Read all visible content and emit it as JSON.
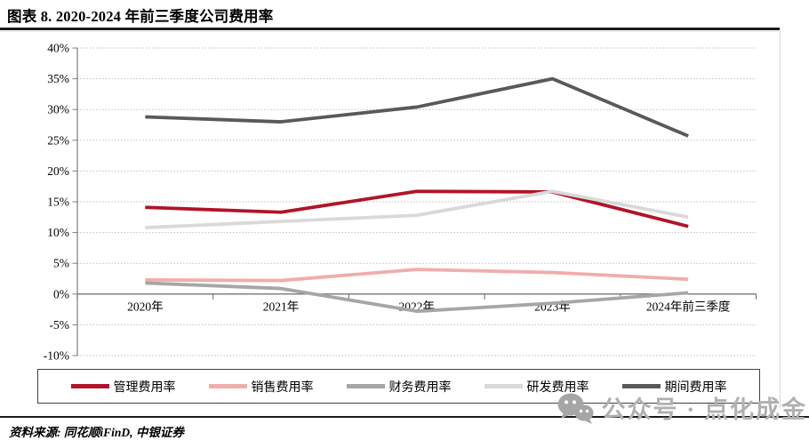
{
  "header": {
    "title": "图表 8. 2020-2024 年前三季度公司费用率"
  },
  "footer": {
    "source": "资料来源: 同花顺iFinD, 中银证券"
  },
  "watermark": {
    "text": "公众号 · 点化成金",
    "icon": "wechat-icon"
  },
  "colors": {
    "title_rule": "#1a1a1a",
    "grid_dotted": "#bfbfbf",
    "axis": "#808080",
    "zero_axis": "#595959",
    "tick": "#666666",
    "legend_border": "#404040",
    "watermark": "#b0b0b0",
    "cell_border": "#d9d9d9"
  },
  "chart_data": {
    "type": "line",
    "title": "图表 8. 2020-2024 年前三季度公司费用率",
    "categories": [
      "2020年",
      "2021年",
      "2022年",
      "2023年",
      "2024年前三季度"
    ],
    "series": [
      {
        "name": "管理费用率",
        "color": "#b01428",
        "values": [
          14.1,
          13.3,
          16.7,
          16.6,
          11.0
        ]
      },
      {
        "name": "销售费用率",
        "color": "#f0adaa",
        "values": [
          2.3,
          2.2,
          4.0,
          3.5,
          2.4
        ]
      },
      {
        "name": "财务费用率",
        "color": "#a6a6a6",
        "values": [
          1.8,
          0.9,
          -2.8,
          -1.5,
          0.2
        ]
      },
      {
        "name": "研发费用率",
        "color": "#d9d9d9",
        "values": [
          10.8,
          11.8,
          12.8,
          16.7,
          12.5
        ]
      },
      {
        "name": "期间费用率",
        "color": "#595959",
        "values": [
          28.8,
          28.0,
          30.4,
          35.0,
          25.7
        ]
      }
    ],
    "ylim": [
      -10,
      40
    ],
    "ytick_step": 5,
    "ytick_suffix": "%",
    "xlabel": "",
    "ylabel": "",
    "grid": "horizontal-dotted",
    "legend_position": "bottom-box"
  }
}
